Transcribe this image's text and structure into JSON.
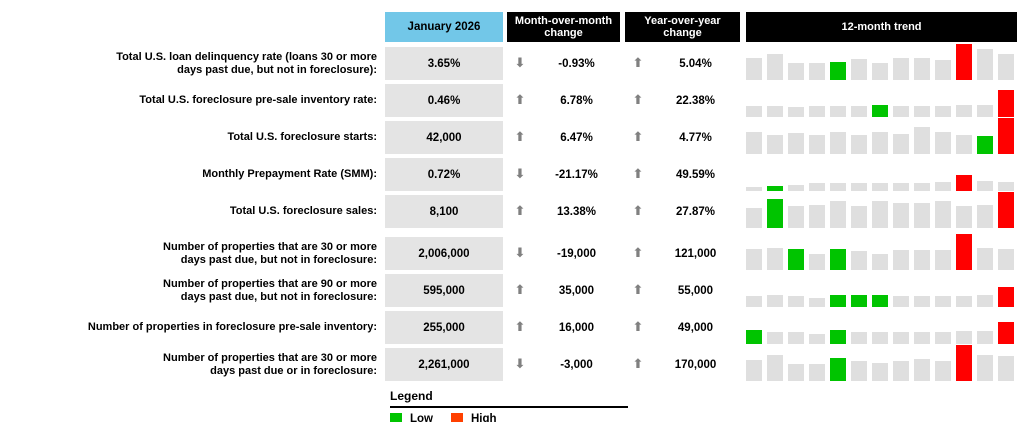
{
  "colors": {
    "header_blue": "#72C7E8",
    "header_black": "#000000",
    "cell_gray": "#E4E4E4",
    "bar_gray": "#DFDFDF",
    "bar_green": "#00C400",
    "bar_red": "#FF0000",
    "legend_red": "#FF4000",
    "arrow_gray": "#808080"
  },
  "chart_data": {
    "type": "table",
    "title": "Mortgage performance first look table",
    "columns": {
      "period": "January 2026",
      "mom_line1": "Month-over-month",
      "mom_line2": "change",
      "yoy_line1": "Year-over-year",
      "yoy_line2": "change",
      "trend": "12-month trend"
    },
    "rows": [
      {
        "label": "Total U.S. loan delinquency rate (loans 30 or more\ndays past due, but not in foreclosure):",
        "value": "3.65%",
        "mom_dir": "down",
        "mom_value": "-0.93%",
        "yoy_dir": "up",
        "yoy_value": "5.04%",
        "trend": {
          "heights": [
            62,
            72,
            48,
            48,
            50,
            58,
            48,
            62,
            62,
            55,
            100,
            85,
            72
          ],
          "green": [
            4
          ],
          "red": [
            10
          ]
        }
      },
      {
        "label": "Total U.S. foreclosure pre-sale inventory rate:",
        "value": "0.46%",
        "mom_dir": "up",
        "mom_value": "6.78%",
        "yoy_dir": "up",
        "yoy_value": "22.38%",
        "trend": {
          "heights": [
            30,
            30,
            28,
            30,
            30,
            30,
            32,
            30,
            30,
            30,
            32,
            34,
            75
          ],
          "green": [
            6
          ],
          "red": [
            12
          ]
        }
      },
      {
        "label": "Total U.S. foreclosure starts:",
        "value": "42,000",
        "mom_dir": "up",
        "mom_value": "6.47%",
        "yoy_dir": "up",
        "yoy_value": "4.77%",
        "trend": {
          "heights": [
            62,
            54,
            58,
            54,
            60,
            54,
            60,
            56,
            75,
            62,
            54,
            50,
            100
          ],
          "green": [
            11
          ],
          "red": [
            12
          ]
        }
      },
      {
        "label": "Monthly Prepayment Rate (SMM):",
        "value": "0.72%",
        "mom_dir": "down",
        "mom_value": "-21.17%",
        "yoy_dir": "up",
        "yoy_value": "49.59%",
        "trend": {
          "heights": [
            12,
            14,
            18,
            22,
            22,
            22,
            22,
            22,
            22,
            25,
            45,
            28,
            25
          ],
          "green": [
            1
          ],
          "red": [
            10
          ]
        }
      },
      {
        "label": "Total U.S. foreclosure sales:",
        "value": "8,100",
        "mom_dir": "up",
        "mom_value": "13.38%",
        "yoy_dir": "up",
        "yoy_value": "27.87%",
        "trend": {
          "heights": [
            55,
            80,
            60,
            65,
            75,
            60,
            75,
            70,
            70,
            75,
            60,
            65,
            100
          ],
          "green": [
            1
          ],
          "red": [
            12
          ]
        }
      },
      {
        "label": "Number of properties that are 30 or more\ndays past due, but not in foreclosure:",
        "value": "2,006,000",
        "mom_dir": "down",
        "mom_value": "-19,000",
        "yoy_dir": "up",
        "yoy_value": "121,000",
        "trend": {
          "heights": [
            58,
            60,
            58,
            45,
            58,
            52,
            45,
            55,
            56,
            56,
            100,
            60,
            58
          ],
          "green": [
            2,
            4
          ],
          "red": [
            10
          ]
        }
      },
      {
        "label": "Number of properties that are 90 or more\ndays past due, but not in foreclosure:",
        "value": "595,000",
        "mom_dir": "up",
        "mom_value": "35,000",
        "yoy_dir": "up",
        "yoy_value": "55,000",
        "trend": {
          "heights": [
            30,
            32,
            30,
            25,
            32,
            32,
            32,
            30,
            30,
            30,
            30,
            32,
            55
          ],
          "green": [
            4,
            5,
            6
          ],
          "red": [
            12
          ]
        }
      },
      {
        "label": "Number of properties in foreclosure pre-sale inventory:",
        "value": "255,000",
        "mom_dir": "up",
        "mom_value": "16,000",
        "yoy_dir": "up",
        "yoy_value": "49,000",
        "trend": {
          "heights": [
            40,
            34,
            34,
            28,
            40,
            34,
            34,
            34,
            34,
            34,
            36,
            36,
            62
          ],
          "green": [
            0,
            4
          ],
          "red": [
            12
          ]
        }
      },
      {
        "label": "Number of properties that are 30 or more\ndays past due or in foreclosure:",
        "value": "2,261,000",
        "mom_dir": "down",
        "mom_value": "-3,000",
        "yoy_dir": "up",
        "yoy_value": "170,000",
        "trend": {
          "heights": [
            58,
            72,
            46,
            46,
            65,
            55,
            50,
            55,
            60,
            55,
            100,
            72,
            70
          ],
          "green": [
            4
          ],
          "red": [
            10
          ]
        }
      }
    ],
    "legend": {
      "title": "Legend",
      "low_label": "Low",
      "high_label": "High"
    }
  }
}
